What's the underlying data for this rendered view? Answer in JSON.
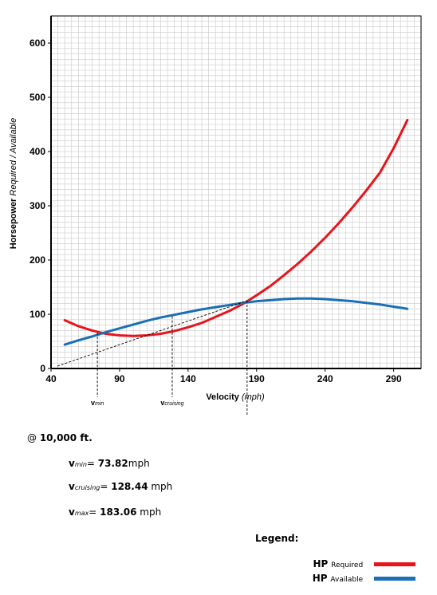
{
  "chart_data": {
    "type": "line",
    "xlabel": "Velocity",
    "xlabel_unit": "(mph)",
    "ylabel": "Horsepower",
    "ylabel_italic": "Required / Available",
    "xlim": [
      40,
      310
    ],
    "ylim": [
      0,
      650
    ],
    "x_ticks": [
      40,
      90,
      140,
      190,
      240,
      290
    ],
    "y_ticks": [
      0,
      100,
      200,
      300,
      400,
      500,
      600
    ],
    "grid": true,
    "series": [
      {
        "name": "Required",
        "color": "#e8141b",
        "x": [
          50,
          60,
          70,
          80,
          90,
          100,
          110,
          120,
          130,
          140,
          150,
          160,
          170,
          180,
          190,
          200,
          210,
          220,
          230,
          240,
          250,
          260,
          270,
          280,
          290,
          300
        ],
        "y": [
          89,
          78,
          70,
          64,
          61,
          60,
          61,
          64,
          69,
          76,
          84,
          95,
          106,
          119,
          135,
          152,
          172,
          193,
          216,
          241,
          268,
          297,
          328,
          361,
          406,
          458
        ]
      },
      {
        "name": "Available",
        "color": "#1a6fb5",
        "x": [
          50,
          60,
          70,
          80,
          90,
          100,
          110,
          120,
          130,
          140,
          150,
          160,
          170,
          180,
          190,
          200,
          210,
          220,
          230,
          240,
          250,
          260,
          270,
          280,
          290,
          300
        ],
        "y": [
          44,
          52,
          59,
          67,
          74,
          81,
          88,
          94,
          99,
          104,
          109,
          113,
          117,
          121,
          124,
          126,
          128,
          129,
          129,
          128,
          126,
          124,
          121,
          118,
          114,
          110
        ]
      }
    ],
    "markers": [
      {
        "label": "v",
        "sub": "min",
        "x": 73.82,
        "y": 66
      },
      {
        "label": "v",
        "sub": "cruising",
        "x": 128.44,
        "y": 96
      },
      {
        "label": "v",
        "sub": "max",
        "x": 183.06,
        "y": 125
      }
    ],
    "tangent_line": {
      "x": [
        40,
        183.06
      ],
      "y": [
        0,
        125
      ]
    }
  },
  "altitude": {
    "prefix": "@ ",
    "value": "10,000 ft."
  },
  "results": [
    {
      "v": "v",
      "sub": "min",
      "sep": "= ",
      "value": "73.82",
      "unit": "mph"
    },
    {
      "v": "v",
      "sub": "cruising",
      "sep": "= ",
      "value": "128.44",
      "unit": " mph"
    },
    {
      "v": "v",
      "sub": "max",
      "sep": "= ",
      "value": "183.06",
      "unit": " mph"
    }
  ],
  "legend": {
    "title": "Legend:",
    "items": [
      {
        "bold": "HP",
        "label": "Required",
        "color": "#e8141b"
      },
      {
        "bold": "HP",
        "label": "Available",
        "color": "#1a6fb5"
      }
    ]
  }
}
